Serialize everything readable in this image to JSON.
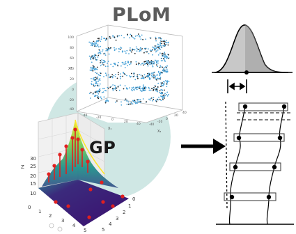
{
  "labels": {
    "plom": "PLoM",
    "gp": "GP"
  },
  "plom_axes": {
    "z_axis_label": "X³",
    "x1_label": "X₁",
    "x2_label": "X₂",
    "z_ticks": [
      "100",
      "80",
      "60",
      "40",
      "20",
      "0",
      "-20",
      "-40"
    ],
    "x1_ticks": [
      "-40",
      "-20",
      "0",
      "20",
      "40"
    ],
    "x2_ticks": [
      "-40",
      "-20",
      "0",
      "20",
      "40"
    ]
  },
  "gp_axes": {
    "z_label": "Z",
    "z_ticks": [
      "30",
      "25",
      "20",
      "15",
      "10"
    ],
    "x_ticks": [
      "0",
      "1",
      "2",
      "3",
      "4",
      "5"
    ],
    "y_ticks": [
      "0",
      "1",
      "2",
      "3",
      "4",
      "5"
    ]
  },
  "colors": {
    "teal_circle": "#cfe7e4",
    "point_blue": "#4aa3d8",
    "point_dark": "#222222",
    "stem_red": "#e02020",
    "gauss_fill": "#bdbdbd",
    "surface_dark": "#3b0f6f",
    "surface_yellow": "#fde725"
  }
}
